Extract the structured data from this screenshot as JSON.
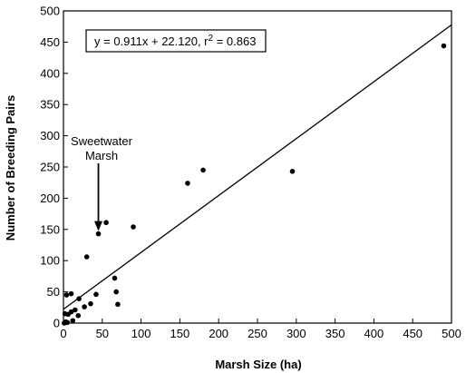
{
  "chart_data": {
    "type": "scatter",
    "title": "",
    "xlabel": "Marsh Size (ha)",
    "ylabel": "Number of Breeding Pairs",
    "xlim": [
      0,
      500
    ],
    "ylim": [
      0,
      500
    ],
    "xticks": [
      "0",
      "50",
      "100",
      "150",
      "200",
      "250",
      "300",
      "350",
      "400",
      "450",
      "500"
    ],
    "yticks": [
      "0",
      "50",
      "100",
      "150",
      "200",
      "250",
      "300",
      "350",
      "400",
      "450",
      "500"
    ],
    "grid": false,
    "legend": "none",
    "points": [
      {
        "x": 1,
        "y": 0
      },
      {
        "x": 3,
        "y": 2
      },
      {
        "x": 5,
        "y": 1
      },
      {
        "x": 2,
        "y": 15
      },
      {
        "x": 6,
        "y": 14
      },
      {
        "x": 10,
        "y": 18
      },
      {
        "x": 15,
        "y": 21
      },
      {
        "x": 12,
        "y": 4
      },
      {
        "x": 4,
        "y": 45
      },
      {
        "x": 10,
        "y": 47
      },
      {
        "x": 19,
        "y": 12
      },
      {
        "x": 20,
        "y": 39
      },
      {
        "x": 27,
        "y": 26
      },
      {
        "x": 35,
        "y": 31
      },
      {
        "x": 42,
        "y": 46
      },
      {
        "x": 30,
        "y": 106
      },
      {
        "x": 45,
        "y": 143
      },
      {
        "x": 55,
        "y": 161
      },
      {
        "x": 66,
        "y": 72
      },
      {
        "x": 68,
        "y": 50
      },
      {
        "x": 70,
        "y": 30
      },
      {
        "x": 90,
        "y": 154
      },
      {
        "x": 160,
        "y": 224
      },
      {
        "x": 180,
        "y": 245
      },
      {
        "x": 295,
        "y": 243
      },
      {
        "x": 490,
        "y": 444
      }
    ],
    "regression": {
      "slope": 0.911,
      "intercept": 22.12,
      "r2": 0.863
    },
    "equation": {
      "prefix": "y = 0.911x + 22.120, r",
      "sup": "2",
      "suffix": " = 0.863"
    },
    "annotation": {
      "line1": "Sweetwater",
      "line2": "Marsh",
      "x": 45,
      "y": 143
    }
  }
}
